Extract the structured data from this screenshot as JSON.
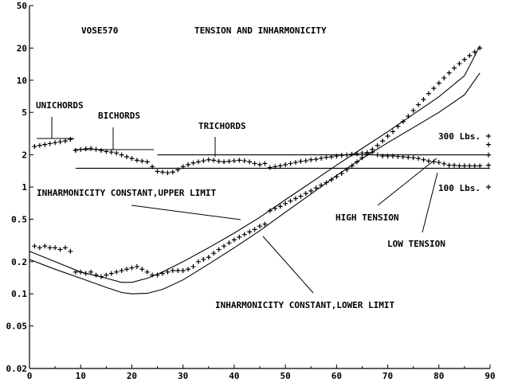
{
  "chart_data": {
    "type": "scatter",
    "title": "TENSION AND INHARMONICITY",
    "subtitle": "VOSE570",
    "xlim": [
      0,
      90
    ],
    "ylim": [
      0.02,
      50
    ],
    "y_scale": "log",
    "grid": false,
    "x_ticks": [
      0,
      10,
      20,
      30,
      40,
      50,
      60,
      70,
      80,
      90
    ],
    "x_tick_labels": [
      "0",
      "10",
      "20",
      "30",
      "40",
      "50",
      "60",
      "70",
      "80",
      "90"
    ],
    "y_ticks": [
      0.02,
      0.05,
      0.1,
      0.2,
      0.5,
      1,
      2,
      5,
      10,
      20,
      50
    ],
    "y_tick_labels": [
      "0.02",
      "0.05",
      "0.1",
      "0.2",
      "0.5",
      "1",
      "2",
      "5",
      "10",
      "20",
      "50"
    ],
    "annotations": {
      "unichords": "UNICHORDS",
      "bichords": "BICHORDS",
      "trichords": "TRICHORDS",
      "upper_limit": "INHARMONICITY CONSTANT,UPPER LIMIT",
      "lower_limit": "INHARMONICITY CONSTANT,LOWER LIMIT",
      "high_tension": "HIGH TENSION",
      "low_tension": "LOW TENSION",
      "lbs_300": "300 Lbs.",
      "lbs_100": "100 Lbs."
    },
    "series": [
      {
        "role": "measured_inharmonicity",
        "marker": "+",
        "points": [
          [
            1,
            0.28
          ],
          [
            2,
            0.27
          ],
          [
            3,
            0.28
          ],
          [
            4,
            0.27
          ],
          [
            5,
            0.27
          ],
          [
            6,
            0.26
          ],
          [
            7,
            0.27
          ],
          [
            8,
            0.25
          ],
          [
            9,
            0.16
          ],
          [
            10,
            0.16
          ],
          [
            11,
            0.155
          ],
          [
            12,
            0.16
          ],
          [
            13,
            0.15
          ],
          [
            14,
            0.145
          ],
          [
            15,
            0.15
          ],
          [
            16,
            0.155
          ],
          [
            17,
            0.16
          ],
          [
            18,
            0.165
          ],
          [
            19,
            0.17
          ],
          [
            20,
            0.175
          ],
          [
            21,
            0.18
          ],
          [
            22,
            0.17
          ],
          [
            23,
            0.16
          ],
          [
            24,
            0.15
          ],
          [
            25,
            0.15
          ],
          [
            26,
            0.155
          ],
          [
            27,
            0.16
          ],
          [
            28,
            0.165
          ],
          [
            29,
            0.165
          ],
          [
            30,
            0.165
          ],
          [
            31,
            0.17
          ],
          [
            32,
            0.18
          ],
          [
            33,
            0.2
          ],
          [
            34,
            0.21
          ],
          [
            35,
            0.22
          ],
          [
            36,
            0.24
          ],
          [
            37,
            0.26
          ],
          [
            38,
            0.28
          ],
          [
            39,
            0.3
          ],
          [
            40,
            0.32
          ],
          [
            41,
            0.34
          ],
          [
            42,
            0.36
          ],
          [
            43,
            0.38
          ],
          [
            44,
            0.4
          ],
          [
            45,
            0.43
          ],
          [
            46,
            0.45
          ],
          [
            47,
            0.6
          ],
          [
            48,
            0.63
          ],
          [
            49,
            0.66
          ],
          [
            50,
            0.7
          ],
          [
            51,
            0.74
          ],
          [
            52,
            0.78
          ],
          [
            53,
            0.82
          ],
          [
            54,
            0.87
          ],
          [
            55,
            0.92
          ],
          [
            56,
            0.98
          ],
          [
            57,
            1.04
          ],
          [
            58,
            1.1
          ],
          [
            59,
            1.17
          ],
          [
            60,
            1.25
          ],
          [
            61,
            1.34
          ],
          [
            62,
            1.45
          ],
          [
            63,
            1.58
          ],
          [
            64,
            1.72
          ],
          [
            65,
            1.88
          ],
          [
            66,
            2.05
          ],
          [
            67,
            2.25
          ],
          [
            68,
            2.45
          ],
          [
            69,
            2.7
          ],
          [
            70,
            3.0
          ],
          [
            71,
            3.3
          ],
          [
            72,
            3.7
          ],
          [
            73,
            4.1
          ],
          [
            74,
            4.6
          ],
          [
            75,
            5.2
          ],
          [
            76,
            5.9
          ],
          [
            77,
            6.6
          ],
          [
            78,
            7.5
          ],
          [
            79,
            8.4
          ],
          [
            80,
            9.4
          ],
          [
            81,
            10.5
          ],
          [
            82,
            11.7
          ],
          [
            83,
            13.0
          ],
          [
            84,
            14.3
          ],
          [
            85,
            15.6
          ],
          [
            86,
            17.0
          ],
          [
            87,
            18.4
          ],
          [
            88,
            20.0
          ]
        ]
      },
      {
        "role": "string_tension",
        "marker": "+",
        "points": [
          [
            1,
            2.4
          ],
          [
            2,
            2.45
          ],
          [
            3,
            2.5
          ],
          [
            4,
            2.55
          ],
          [
            5,
            2.6
          ],
          [
            6,
            2.65
          ],
          [
            7,
            2.7
          ],
          [
            8,
            2.8
          ],
          [
            9,
            2.2
          ],
          [
            10,
            2.25
          ],
          [
            11,
            2.28
          ],
          [
            12,
            2.3
          ],
          [
            13,
            2.25
          ],
          [
            14,
            2.2
          ],
          [
            15,
            2.15
          ],
          [
            16,
            2.12
          ],
          [
            17,
            2.08
          ],
          [
            18,
            2.0
          ],
          [
            19,
            1.92
          ],
          [
            20,
            1.85
          ],
          [
            21,
            1.78
          ],
          [
            22,
            1.75
          ],
          [
            23,
            1.72
          ],
          [
            24,
            1.55
          ],
          [
            25,
            1.4
          ],
          [
            26,
            1.38
          ],
          [
            27,
            1.36
          ],
          [
            28,
            1.38
          ],
          [
            29,
            1.45
          ],
          [
            30,
            1.55
          ],
          [
            31,
            1.62
          ],
          [
            32,
            1.68
          ],
          [
            33,
            1.72
          ],
          [
            34,
            1.76
          ],
          [
            35,
            1.8
          ],
          [
            36,
            1.78
          ],
          [
            37,
            1.74
          ],
          [
            38,
            1.72
          ],
          [
            39,
            1.74
          ],
          [
            40,
            1.76
          ],
          [
            41,
            1.78
          ],
          [
            42,
            1.76
          ],
          [
            43,
            1.72
          ],
          [
            44,
            1.66
          ],
          [
            45,
            1.62
          ],
          [
            46,
            1.66
          ],
          [
            47,
            1.52
          ],
          [
            48,
            1.55
          ],
          [
            49,
            1.58
          ],
          [
            50,
            1.62
          ],
          [
            51,
            1.66
          ],
          [
            52,
            1.7
          ],
          [
            53,
            1.74
          ],
          [
            54,
            1.76
          ],
          [
            55,
            1.8
          ],
          [
            56,
            1.82
          ],
          [
            57,
            1.86
          ],
          [
            58,
            1.9
          ],
          [
            59,
            1.92
          ],
          [
            60,
            1.95
          ],
          [
            61,
            1.98
          ],
          [
            62,
            2.0
          ],
          [
            63,
            2.03
          ],
          [
            64,
            2.05
          ],
          [
            65,
            2.08
          ],
          [
            66,
            2.1
          ],
          [
            67,
            2.12
          ],
          [
            68,
            2.0
          ],
          [
            69,
            1.95
          ],
          [
            70,
            1.95
          ],
          [
            71,
            1.95
          ],
          [
            72,
            1.93
          ],
          [
            73,
            1.92
          ],
          [
            74,
            1.9
          ],
          [
            75,
            1.88
          ],
          [
            76,
            1.85
          ],
          [
            77,
            1.8
          ],
          [
            78,
            1.75
          ],
          [
            79,
            1.72
          ],
          [
            80,
            1.7
          ],
          [
            81,
            1.65
          ],
          [
            82,
            1.6
          ],
          [
            83,
            1.6
          ],
          [
            84,
            1.58
          ],
          [
            85,
            1.58
          ],
          [
            86,
            1.58
          ],
          [
            87,
            1.58
          ],
          [
            88,
            1.58
          ]
        ]
      },
      {
        "role": "upper_limit_curve",
        "line": true,
        "points": [
          [
            0,
            0.25
          ],
          [
            5,
            0.2
          ],
          [
            10,
            0.16
          ],
          [
            15,
            0.14
          ],
          [
            18,
            0.128
          ],
          [
            20,
            0.128
          ],
          [
            23,
            0.14
          ],
          [
            26,
            0.16
          ],
          [
            30,
            0.2
          ],
          [
            35,
            0.27
          ],
          [
            40,
            0.37
          ],
          [
            45,
            0.52
          ],
          [
            50,
            0.76
          ],
          [
            55,
            1.1
          ],
          [
            60,
            1.6
          ],
          [
            65,
            2.3
          ],
          [
            70,
            3.3
          ],
          [
            75,
            4.8
          ],
          [
            80,
            7.0
          ],
          [
            85,
            11.0
          ],
          [
            88,
            21.0
          ]
        ]
      },
      {
        "role": "lower_limit_curve",
        "line": true,
        "points": [
          [
            0,
            0.21
          ],
          [
            5,
            0.17
          ],
          [
            10,
            0.14
          ],
          [
            15,
            0.115
          ],
          [
            18,
            0.103
          ],
          [
            20,
            0.1
          ],
          [
            23,
            0.101
          ],
          [
            26,
            0.11
          ],
          [
            30,
            0.135
          ],
          [
            35,
            0.19
          ],
          [
            40,
            0.27
          ],
          [
            45,
            0.39
          ],
          [
            50,
            0.58
          ],
          [
            55,
            0.86
          ],
          [
            60,
            1.28
          ],
          [
            65,
            1.85
          ],
          [
            70,
            2.6
          ],
          [
            75,
            3.6
          ],
          [
            80,
            5.0
          ],
          [
            85,
            7.3
          ],
          [
            88,
            11.7
          ]
        ]
      },
      {
        "role": "tension_300_lbs",
        "line": true,
        "points": [
          [
            25,
            2.0
          ],
          [
            90,
            2.0
          ]
        ]
      },
      {
        "role": "tension_100_lbs",
        "line": true,
        "points": [
          [
            9,
            1.5
          ],
          [
            90,
            1.5
          ]
        ]
      }
    ]
  }
}
